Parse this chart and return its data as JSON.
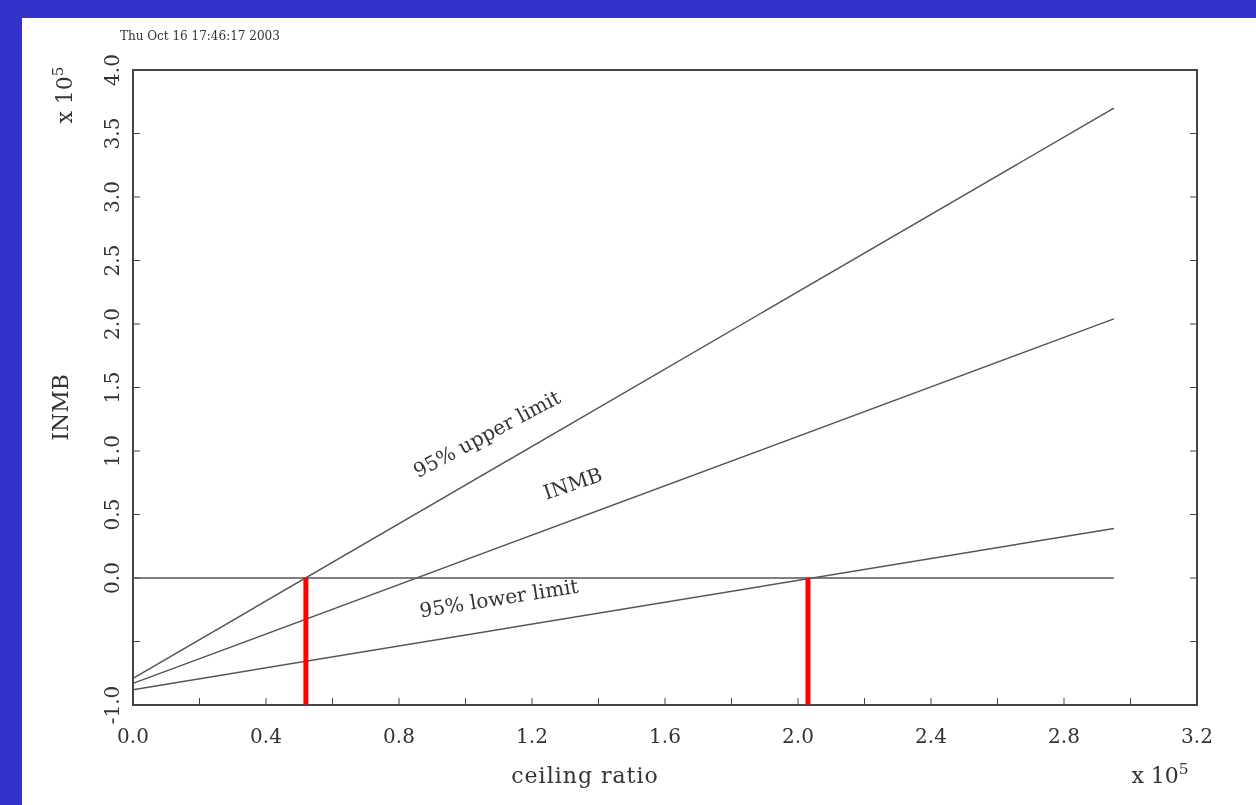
{
  "chart_data": {
    "type": "line",
    "xlabel": "ceiling ratio",
    "ylabel": "INMB",
    "xlim": [
      0,
      3.2
    ],
    "ylim": [
      -1,
      4
    ],
    "xticks": [
      {
        "value": 0,
        "label": "0.0"
      },
      {
        "value": 0.2,
        "label": null
      },
      0.4,
      {
        "value": 0.6,
        "label": null
      },
      0.8,
      {
        "value": 1.0,
        "label": null
      },
      1.2,
      {
        "value": 1.4,
        "label": null
      },
      1.6,
      {
        "value": 1.8,
        "label": null
      },
      {
        "value": 2,
        "label": "2.0"
      },
      {
        "value": 2.2,
        "label": null
      },
      2.4,
      {
        "value": 2.6,
        "label": null
      },
      2.8,
      {
        "value": 3.0,
        "label": null
      },
      3.2
    ],
    "yticks": [
      {
        "value": -1,
        "label": "-1.0"
      },
      {
        "value": -0.5,
        "label": null
      },
      {
        "value": 0,
        "label": "0.0"
      },
      0.5,
      {
        "value": 1,
        "label": "1.0"
      },
      1.5,
      {
        "value": 2,
        "label": "2.0"
      },
      2.5,
      {
        "value": 3,
        "label": "3.0"
      },
      3.5,
      {
        "value": 4,
        "label": "4.0"
      }
    ],
    "series": [
      {
        "color": "#555555",
        "x": [
          0,
          2.95
        ],
        "values": [
          -0.79,
          3.7
        ]
      },
      {
        "color": "#555555",
        "x": [
          0,
          2.95
        ],
        "values": [
          -0.83,
          2.04
        ]
      },
      {
        "color": "#555555",
        "x": [
          0,
          2.95
        ],
        "values": [
          -0.88,
          0.39
        ]
      },
      {
        "color": "#555555",
        "x": [
          0,
          2.95
        ],
        "values": [
          0,
          0
        ]
      },
      {
        "color": "#ff0000",
        "x": [
          0.52,
          0.52
        ],
        "values": [
          -1,
          0
        ]
      },
      {
        "color": "#ff0000",
        "x": [
          2.03,
          2.03
        ],
        "values": [
          -1,
          0
        ]
      }
    ],
    "annotations": [
      "Thu Oct 16 17:46:17 2003",
      "x 10$^{5}$",
      "x 10$^{5}$",
      "95% upper limit",
      "INMB",
      "95% lower limit"
    ],
    "grid": false,
    "marker": "none",
    "line_style": "solid"
  }
}
